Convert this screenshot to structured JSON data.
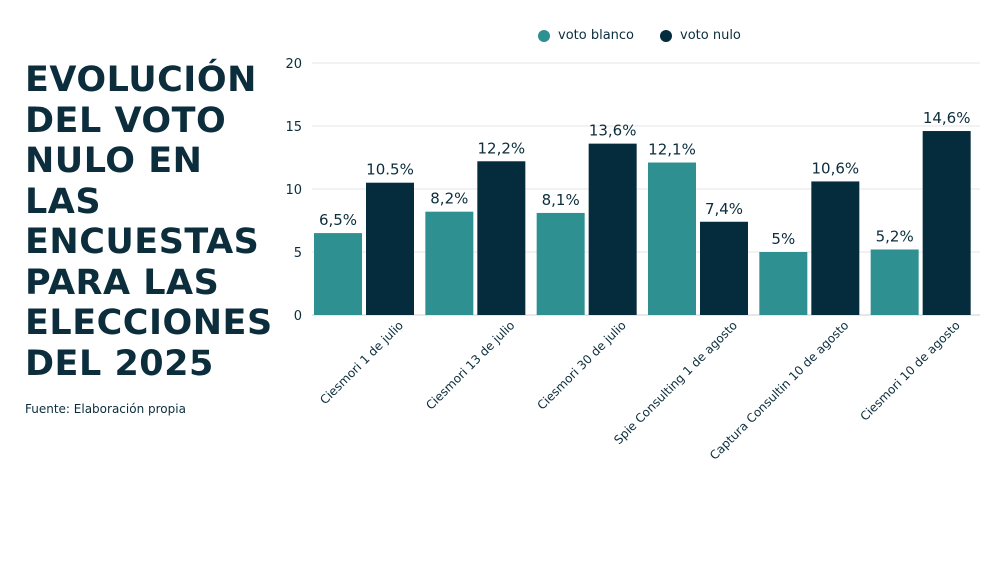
{
  "title": "EVOLUCIÓN\nDEL VOTO\nNULO EN\nLAS\nENCUESTAS\nPARA LAS\nELECCIONES\nDEL 2025",
  "source": "Fuente: Elaboración propia",
  "colors": {
    "voto_blanco": "#2e9090",
    "voto_nulo": "#052c3c",
    "text": "#0b2d3c",
    "grid": "#e6e6e6"
  },
  "chart_data": {
    "type": "bar",
    "categories": [
      "Ciesmori 1 de julio",
      "Ciesmori 13 de julio",
      "Ciesmori 30 de julio",
      "Spie Consulting 1 de agosto",
      "Captura Consultin 10 de agosto",
      "Ciesmori 10 de agosto"
    ],
    "series": [
      {
        "name": "voto blanco",
        "values": [
          6.5,
          8.2,
          8.1,
          12.1,
          5,
          5.2
        ],
        "labels": [
          "6,5%",
          "8,2%",
          "8,1%",
          "12,1%",
          "5%",
          "5,2%"
        ]
      },
      {
        "name": "voto nulo",
        "values": [
          10.5,
          12.2,
          13.6,
          7.4,
          10.6,
          14.6
        ],
        "labels": [
          "10.5%",
          "12,2%",
          "13,6%",
          "7,4%",
          "10,6%",
          "14,6%"
        ]
      }
    ],
    "yticks": [
      "0",
      "5",
      "10",
      "15",
      "20"
    ],
    "ylim": [
      0,
      20
    ],
    "grid": true,
    "legend": "top"
  }
}
